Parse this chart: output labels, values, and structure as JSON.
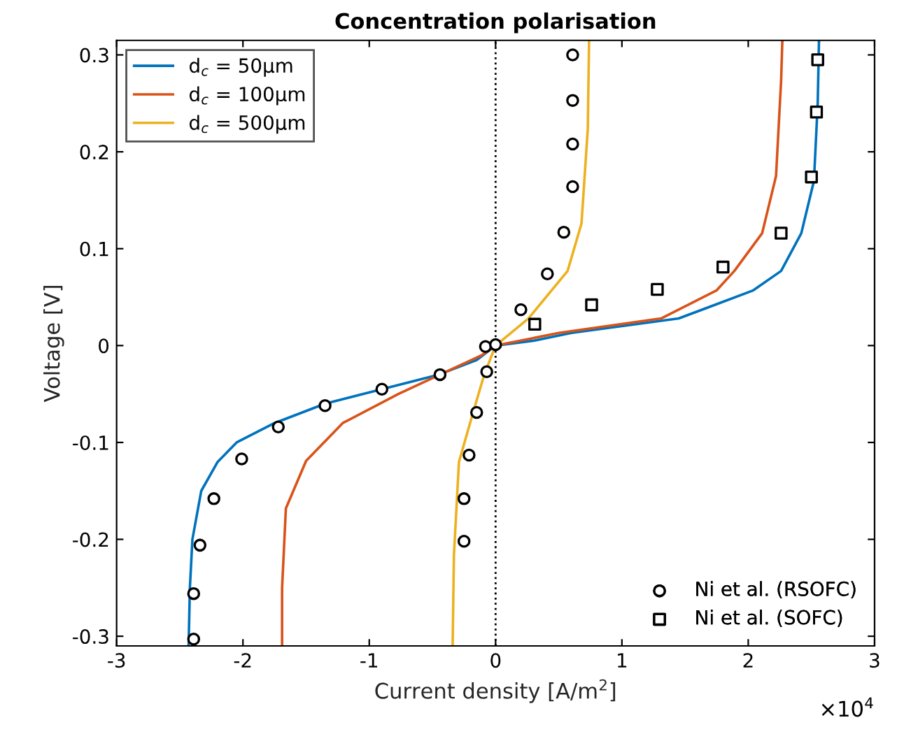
{
  "chart_data": {
    "type": "line",
    "title": "Concentration polarisation",
    "xlabel": "Current density [A/m$^{2}$]",
    "ylabel": "Voltage [V]",
    "annotations": [
      "×10$^{4}$"
    ],
    "xlim": [
      -3,
      3
    ],
    "xticks": [
      -3,
      -2,
      -1,
      0,
      1,
      2,
      3
    ],
    "ylim": [
      -0.31,
      0.315
    ],
    "yticks": [
      -0.3,
      -0.2,
      -0.1,
      0,
      0.1,
      0.2,
      0.3
    ],
    "grid": false,
    "legend": [
      "top left",
      "bottom right"
    ],
    "ref_lines": [
      {
        "axis": "x",
        "value": 0,
        "color": "#000000",
        "line_style": "dotted"
      }
    ],
    "series": [
      {
        "name": "d$_{c}$ = 50μm",
        "color": "#0072bd",
        "x": [
          -2.43,
          -2.42,
          -2.4,
          -2.33,
          -2.2,
          -2.05,
          -1.75,
          -1.35,
          -0.9,
          -0.45,
          -0.15,
          0,
          0.3,
          0.6,
          1.45,
          2.04,
          2.26,
          2.42,
          2.52,
          2.55,
          2.56
        ],
        "values": [
          -0.31,
          -0.25,
          -0.2,
          -0.15,
          -0.12,
          -0.1,
          -0.08,
          -0.06,
          -0.045,
          -0.03,
          -0.015,
          0,
          0.005,
          0.013,
          0.028,
          0.057,
          0.077,
          0.116,
          0.17,
          0.25,
          0.315
        ]
      },
      {
        "name": "d$_{c}$ = 100μm",
        "color": "#d95319",
        "x": [
          -1.69,
          -1.69,
          -1.66,
          -1.5,
          -1.21,
          -0.77,
          -0.44,
          -0.11,
          0,
          0.5,
          1.31,
          1.75,
          1.89,
          2.11,
          2.22,
          2.26,
          2.27
        ],
        "values": [
          -0.31,
          -0.25,
          -0.168,
          -0.119,
          -0.08,
          -0.05,
          -0.03,
          -0.01,
          0,
          0.013,
          0.028,
          0.057,
          0.077,
          0.116,
          0.175,
          0.273,
          0.315
        ]
      },
      {
        "name": "d$_{c}$ = 500μm",
        "color": "#edb120",
        "x": [
          -0.34,
          -0.33,
          -0.29,
          -0.18,
          -0.09,
          0,
          0.26,
          0.57,
          0.68,
          0.73,
          0.74
        ],
        "values": [
          -0.31,
          -0.217,
          -0.12,
          -0.07,
          -0.03,
          0,
          0.028,
          0.077,
          0.126,
          0.224,
          0.315
        ]
      },
      {
        "name": "Ni et al. (RSOFC)",
        "type": "scatter",
        "marker": "circle",
        "color": "#000000",
        "x": [
          -2.39,
          -2.39,
          -2.34,
          -2.23,
          -2.01,
          -1.72,
          -1.35,
          -0.9,
          -0.44,
          -0.08,
          0,
          -0.07,
          -0.15,
          -0.21,
          -0.25,
          -0.25,
          0.2,
          0.41,
          0.54,
          0.61,
          0.61,
          0.61,
          0.61
        ],
        "values": [
          -0.303,
          -0.256,
          -0.206,
          -0.158,
          -0.117,
          -0.084,
          -0.062,
          -0.045,
          -0.03,
          -0.001,
          0.001,
          -0.027,
          -0.069,
          -0.113,
          -0.158,
          -0.202,
          0.037,
          0.074,
          0.117,
          0.164,
          0.208,
          0.253,
          0.3
        ]
      },
      {
        "name": "Ni et al. (SOFC)",
        "type": "scatter",
        "marker": "square",
        "color": "#000000",
        "x": [
          0.31,
          0.76,
          1.28,
          1.8,
          2.26,
          2.5,
          2.54,
          2.55
        ],
        "values": [
          0.022,
          0.042,
          0.058,
          0.081,
          0.116,
          0.174,
          0.241,
          0.295
        ]
      }
    ]
  }
}
